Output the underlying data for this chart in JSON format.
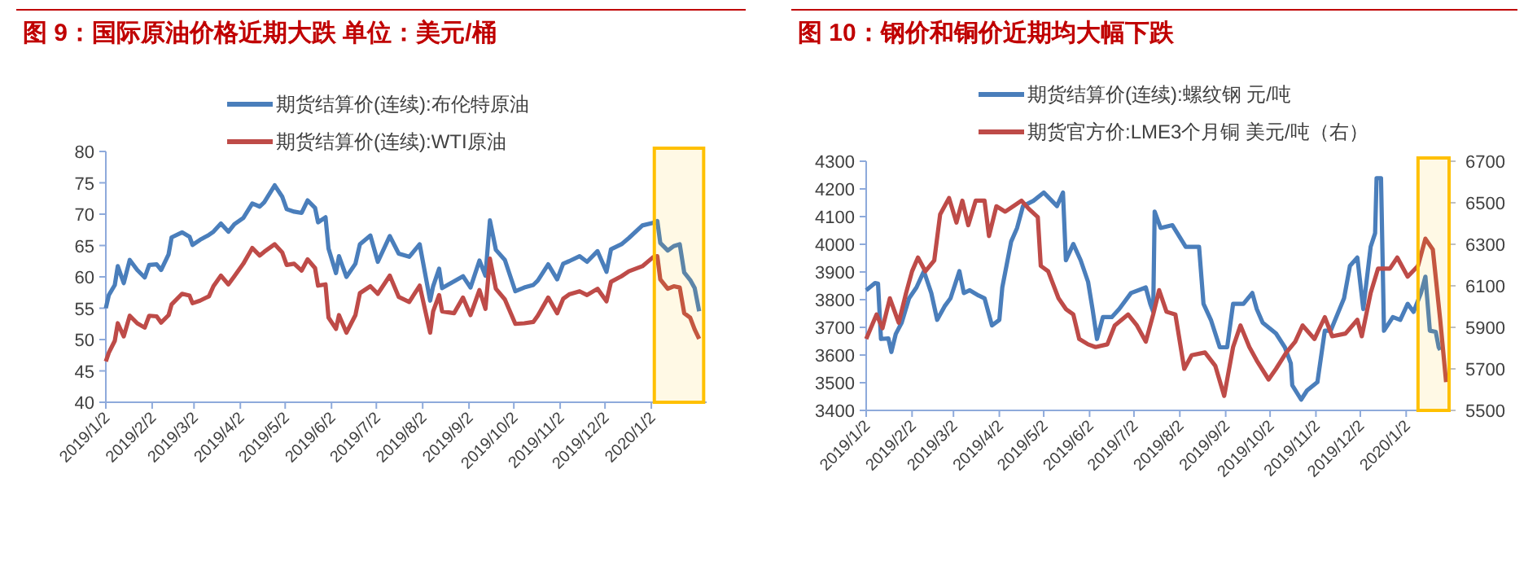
{
  "chart_data": [
    {
      "type": "line",
      "title": "图 9：国际原油价格近期大跌  单位：美元/桶",
      "legend": "top",
      "grid": false,
      "xlim": [
        "2019-01-02",
        "2020-02-08"
      ],
      "xticks": [
        {
          "value": "2019-01-02",
          "label": "2019/1/2"
        },
        {
          "value": "2019-02-02",
          "label": "2019/2/2"
        },
        {
          "value": "2019-03-02",
          "label": "2019/3/2"
        },
        {
          "value": "2019-04-02",
          "label": "2019/4/2"
        },
        {
          "value": "2019-05-02",
          "label": "2019/5/2"
        },
        {
          "value": "2019-06-02",
          "label": "2019/6/2"
        },
        {
          "value": "2019-07-02",
          "label": "2019/7/2"
        },
        {
          "value": "2019-08-02",
          "label": "2019/8/2"
        },
        {
          "value": "2019-09-02",
          "label": "2019/9/2"
        },
        {
          "value": "2019-10-02",
          "label": "2019/10/2"
        },
        {
          "value": "2019-11-02",
          "label": "2019/11/2"
        },
        {
          "value": "2019-12-02",
          "label": "2019/12/2"
        },
        {
          "value": "2020-01-02",
          "label": "2020/1/2"
        }
      ],
      "ylim": [
        40,
        80
      ],
      "yticks": [
        40,
        45,
        50,
        55,
        60,
        65,
        70,
        75,
        80
      ],
      "bands": [
        {
          "axis": "x",
          "from": "2020-01-04",
          "to": "2020-02-06",
          "color": "#ffc000"
        }
      ],
      "series": [
        {
          "name": "期货结算价(连续):布伦特原油",
          "color": "#4a7ebb",
          "x": [
            "2019-01-02",
            "2019-01-04",
            "2019-01-08",
            "2019-01-10",
            "2019-01-14",
            "2019-01-18",
            "2019-01-23",
            "2019-01-28",
            "2019-01-31",
            "2019-02-05",
            "2019-02-08",
            "2019-02-13",
            "2019-02-15",
            "2019-02-22",
            "2019-02-27",
            "2019-03-01",
            "2019-03-06",
            "2019-03-12",
            "2019-03-15",
            "2019-03-20",
            "2019-03-25",
            "2019-03-29",
            "2019-04-04",
            "2019-04-10",
            "2019-04-15",
            "2019-04-18",
            "2019-04-25",
            "2019-04-30",
            "2019-05-03",
            "2019-05-08",
            "2019-05-13",
            "2019-05-17",
            "2019-05-22",
            "2019-05-24",
            "2019-05-29",
            "2019-05-31",
            "2019-06-05",
            "2019-06-07",
            "2019-06-12",
            "2019-06-18",
            "2019-06-21",
            "2019-06-28",
            "2019-07-03",
            "2019-07-11",
            "2019-07-17",
            "2019-07-24",
            "2019-07-31",
            "2019-08-07",
            "2019-08-09",
            "2019-08-13",
            "2019-08-15",
            "2019-08-23",
            "2019-08-29",
            "2019-09-03",
            "2019-09-09",
            "2019-09-13",
            "2019-09-16",
            "2019-09-20",
            "2019-09-26",
            "2019-10-03",
            "2019-10-09",
            "2019-10-15",
            "2019-10-18",
            "2019-10-25",
            "2019-10-31",
            "2019-11-04",
            "2019-11-08",
            "2019-11-15",
            "2019-11-20",
            "2019-11-27",
            "2019-12-03",
            "2019-12-06",
            "2019-12-13",
            "2019-12-18",
            "2019-12-27",
            "2020-01-03",
            "2020-01-06",
            "2020-01-08",
            "2020-01-13",
            "2020-01-17",
            "2020-01-21",
            "2020-01-24",
            "2020-01-28",
            "2020-01-31",
            "2020-02-03"
          ],
          "values": [
            55.0,
            57.1,
            58.7,
            61.7,
            59.0,
            62.7,
            61.1,
            59.9,
            61.9,
            62.0,
            61.1,
            63.6,
            66.3,
            67.1,
            66.4,
            65.1,
            65.9,
            66.7,
            67.2,
            68.5,
            67.2,
            68.4,
            69.4,
            71.7,
            71.2,
            71.9,
            74.6,
            72.8,
            70.8,
            70.4,
            70.2,
            72.2,
            71.0,
            68.7,
            69.5,
            64.5,
            60.6,
            63.3,
            60.0,
            62.1,
            65.2,
            66.6,
            62.4,
            66.5,
            63.7,
            63.2,
            65.2,
            56.2,
            58.5,
            61.3,
            58.2,
            59.3,
            60.1,
            58.3,
            62.6,
            60.2,
            69.0,
            64.3,
            62.7,
            57.7,
            58.3,
            58.7,
            59.4,
            62.0,
            59.6,
            62.1,
            62.5,
            63.3,
            62.4,
            64.1,
            60.8,
            64.4,
            65.2,
            66.2,
            68.2,
            68.6,
            68.9,
            65.4,
            64.2,
            64.9,
            65.2,
            60.7,
            59.5,
            58.2,
            54.5
          ]
        },
        {
          "name": "期货结算价(连续):WTI原油",
          "color": "#be4b48",
          "x": [
            "2019-01-02",
            "2019-01-04",
            "2019-01-08",
            "2019-01-10",
            "2019-01-14",
            "2019-01-18",
            "2019-01-23",
            "2019-01-28",
            "2019-01-31",
            "2019-02-05",
            "2019-02-08",
            "2019-02-13",
            "2019-02-15",
            "2019-02-22",
            "2019-02-27",
            "2019-03-01",
            "2019-03-06",
            "2019-03-12",
            "2019-03-15",
            "2019-03-20",
            "2019-03-25",
            "2019-03-29",
            "2019-04-04",
            "2019-04-10",
            "2019-04-15",
            "2019-04-18",
            "2019-04-25",
            "2019-04-30",
            "2019-05-03",
            "2019-05-08",
            "2019-05-13",
            "2019-05-17",
            "2019-05-22",
            "2019-05-24",
            "2019-05-29",
            "2019-05-31",
            "2019-06-05",
            "2019-06-07",
            "2019-06-12",
            "2019-06-18",
            "2019-06-21",
            "2019-06-28",
            "2019-07-03",
            "2019-07-11",
            "2019-07-17",
            "2019-07-24",
            "2019-07-31",
            "2019-08-07",
            "2019-08-09",
            "2019-08-13",
            "2019-08-15",
            "2019-08-23",
            "2019-08-29",
            "2019-09-03",
            "2019-09-09",
            "2019-09-13",
            "2019-09-16",
            "2019-09-20",
            "2019-09-26",
            "2019-10-03",
            "2019-10-09",
            "2019-10-15",
            "2019-10-18",
            "2019-10-25",
            "2019-10-31",
            "2019-11-04",
            "2019-11-08",
            "2019-11-15",
            "2019-11-20",
            "2019-11-27",
            "2019-12-03",
            "2019-12-06",
            "2019-12-13",
            "2019-12-18",
            "2019-12-27",
            "2020-01-03",
            "2020-01-06",
            "2020-01-08",
            "2020-01-13",
            "2020-01-17",
            "2020-01-21",
            "2020-01-24",
            "2020-01-28",
            "2020-01-31",
            "2020-02-03"
          ],
          "values": [
            46.5,
            47.9,
            49.8,
            52.6,
            50.5,
            53.8,
            52.6,
            51.9,
            53.8,
            53.7,
            52.7,
            53.9,
            55.6,
            57.3,
            57.0,
            55.8,
            56.2,
            56.9,
            58.5,
            60.2,
            58.8,
            60.1,
            62.1,
            64.6,
            63.4,
            64.0,
            65.2,
            63.9,
            61.9,
            62.1,
            61.0,
            62.8,
            61.4,
            58.6,
            58.8,
            53.5,
            51.7,
            53.9,
            51.1,
            53.9,
            57.4,
            58.5,
            57.3,
            60.2,
            56.8,
            56.0,
            58.6,
            51.1,
            54.5,
            57.1,
            54.5,
            54.2,
            56.7,
            53.9,
            57.9,
            54.9,
            62.9,
            58.1,
            56.4,
            52.5,
            52.6,
            52.8,
            53.8,
            56.7,
            54.2,
            56.5,
            57.2,
            57.7,
            57.1,
            58.1,
            56.1,
            59.2,
            60.1,
            60.9,
            61.7,
            63.1,
            63.3,
            59.6,
            58.1,
            58.5,
            58.3,
            54.2,
            53.5,
            51.6,
            50.1
          ]
        }
      ]
    },
    {
      "type": "line",
      "title": "图 10：钢价和铜价近期均大幅下跌",
      "legend": "top",
      "grid": false,
      "xlim": [
        "2019-01-02",
        "2020-01-31"
      ],
      "xticks": [
        {
          "value": "2019-01-02",
          "label": "2019/1/2"
        },
        {
          "value": "2019-02-02",
          "label": "2019/2/2"
        },
        {
          "value": "2019-03-02",
          "label": "2019/3/2"
        },
        {
          "value": "2019-04-02",
          "label": "2019/4/2"
        },
        {
          "value": "2019-05-02",
          "label": "2019/5/2"
        },
        {
          "value": "2019-06-02",
          "label": "2019/6/2"
        },
        {
          "value": "2019-07-02",
          "label": "2019/7/2"
        },
        {
          "value": "2019-08-02",
          "label": "2019/8/2"
        },
        {
          "value": "2019-09-02",
          "label": "2019/9/2"
        },
        {
          "value": "2019-10-02",
          "label": "2019/10/2"
        },
        {
          "value": "2019-11-02",
          "label": "2019/11/2"
        },
        {
          "value": "2019-12-02",
          "label": "2019/12/2"
        },
        {
          "value": "2020-01-02",
          "label": "2020/1/2"
        }
      ],
      "ylim": [
        3400,
        4300
      ],
      "yticks": [
        3400,
        3500,
        3600,
        3700,
        3800,
        3900,
        4000,
        4100,
        4200,
        4300
      ],
      "y2lim": [
        5500,
        6700
      ],
      "y2ticks": [
        5500,
        5700,
        5900,
        6100,
        6300,
        6500,
        6700
      ],
      "bands": [
        {
          "axis": "x",
          "from": "2020-01-10",
          "to": "2020-01-31",
          "color": "#ffc000"
        }
      ],
      "series": [
        {
          "name": "期货结算价(连续):螺纹钢 元/吨",
          "color": "#4a7ebb",
          "x": [
            "2019-01-02",
            "2019-01-08",
            "2019-01-10",
            "2019-01-12",
            "2019-01-17",
            "2019-01-19",
            "2019-01-22",
            "2019-01-26",
            "2019-01-31",
            "2019-02-05",
            "2019-02-10",
            "2019-02-15",
            "2019-02-19",
            "2019-02-24",
            "2019-02-28",
            "2019-03-06",
            "2019-03-09",
            "2019-03-13",
            "2019-03-19",
            "2019-03-23",
            "2019-03-28",
            "2019-04-02",
            "2019-04-04",
            "2019-04-10",
            "2019-04-14",
            "2019-04-18",
            "2019-04-25",
            "2019-05-02",
            "2019-05-11",
            "2019-05-15",
            "2019-05-17",
            "2019-05-22",
            "2019-05-27",
            "2019-06-01",
            "2019-06-04",
            "2019-06-07",
            "2019-06-11",
            "2019-06-17",
            "2019-06-22",
            "2019-06-30",
            "2019-07-10",
            "2019-07-13",
            "2019-07-15",
            "2019-07-16",
            "2019-07-20",
            "2019-07-28",
            "2019-08-06",
            "2019-08-15",
            "2019-08-18",
            "2019-08-23",
            "2019-08-29",
            "2019-09-03",
            "2019-09-07",
            "2019-09-14",
            "2019-09-20",
            "2019-09-23",
            "2019-09-27",
            "2019-10-06",
            "2019-10-12",
            "2019-10-16",
            "2019-10-17",
            "2019-10-23",
            "2019-10-27",
            "2019-11-03",
            "2019-11-08",
            "2019-11-12",
            "2019-11-21",
            "2019-11-25",
            "2019-11-30",
            "2019-12-04",
            "2019-12-09",
            "2019-12-12",
            "2019-12-13",
            "2019-12-16",
            "2019-12-18",
            "2019-12-24",
            "2019-12-29",
            "2020-01-03",
            "2020-01-07",
            "2020-01-12",
            "2020-01-15",
            "2020-01-18",
            "2020-01-22",
            "2020-01-24",
            "2020-01-25"
          ],
          "values": [
            3834,
            3860,
            3858,
            3658,
            3660,
            3611,
            3676,
            3717,
            3805,
            3844,
            3903,
            3824,
            3727,
            3776,
            3805,
            3903,
            3824,
            3834,
            3815,
            3805,
            3707,
            3727,
            3844,
            4010,
            4059,
            4138,
            4157,
            4187,
            4138,
            4187,
            3942,
            4001,
            3942,
            3864,
            3766,
            3658,
            3737,
            3737,
            3766,
            3824,
            3844,
            3785,
            3756,
            4118,
            4059,
            4069,
            3991,
            3991,
            3785,
            3727,
            3628,
            3628,
            3785,
            3785,
            3824,
            3766,
            3717,
            3678,
            3628,
            3570,
            3491,
            3439,
            3472,
            3502,
            3688,
            3688,
            3805,
            3922,
            3952,
            3766,
            3991,
            4040,
            4239,
            4239,
            3688,
            3737,
            3727,
            3785,
            3756,
            3824,
            3883,
            3688,
            3684,
            3628,
            3618
          ]
        },
        {
          "name": "期货官方价:LME3个月铜 美元/吨（右）",
          "color": "#be4b48",
          "axis": "y2",
          "x": [
            "2019-01-02",
            "2019-01-09",
            "2019-01-13",
            "2019-01-18",
            "2019-01-24",
            "2019-01-29",
            "2019-02-02",
            "2019-02-06",
            "2019-02-11",
            "2019-02-17",
            "2019-02-21",
            "2019-02-27",
            "2019-03-04",
            "2019-03-08",
            "2019-03-12",
            "2019-03-17",
            "2019-03-23",
            "2019-03-26",
            "2019-03-31",
            "2019-04-06",
            "2019-04-17",
            "2019-04-22",
            "2019-04-28",
            "2019-04-30",
            "2019-05-05",
            "2019-05-12",
            "2019-05-17",
            "2019-05-22",
            "2019-05-26",
            "2019-06-01",
            "2019-06-06",
            "2019-06-14",
            "2019-06-19",
            "2019-06-28",
            "2019-07-04",
            "2019-07-10",
            "2019-07-15",
            "2019-07-19",
            "2019-07-24",
            "2019-07-30",
            "2019-08-05",
            "2019-08-10",
            "2019-08-19",
            "2019-08-26",
            "2019-09-01",
            "2019-09-07",
            "2019-09-12",
            "2019-09-18",
            "2019-09-23",
            "2019-10-01",
            "2019-10-06",
            "2019-10-13",
            "2019-10-19",
            "2019-10-24",
            "2019-11-01",
            "2019-11-08",
            "2019-11-13",
            "2019-11-22",
            "2019-11-30",
            "2019-12-03",
            "2019-12-09",
            "2019-12-14",
            "2019-12-22",
            "2019-12-27",
            "2020-01-03",
            "2020-01-10",
            "2020-01-15",
            "2020-01-20",
            "2020-01-25",
            "2020-01-29"
          ],
          "values": [
            5844,
            5962,
            5896,
            6040,
            5922,
            6066,
            6170,
            6236,
            6170,
            6222,
            6444,
            6523,
            6405,
            6510,
            6392,
            6510,
            6510,
            6340,
            6483,
            6457,
            6510,
            6470,
            6431,
            6196,
            6170,
            6040,
            5988,
            5962,
            5844,
            5818,
            5805,
            5818,
            5909,
            5962,
            5909,
            5831,
            5962,
            6079,
            5975,
            5962,
            5700,
            5766,
            5779,
            5714,
            5570,
            5805,
            5909,
            5805,
            5740,
            5649,
            5700,
            5779,
            5831,
            5909,
            5844,
            5949,
            5857,
            5870,
            5936,
            5857,
            6066,
            6183,
            6183,
            6236,
            6144,
            6196,
            6327,
            6275,
            5936,
            5636
          ]
        }
      ]
    }
  ]
}
